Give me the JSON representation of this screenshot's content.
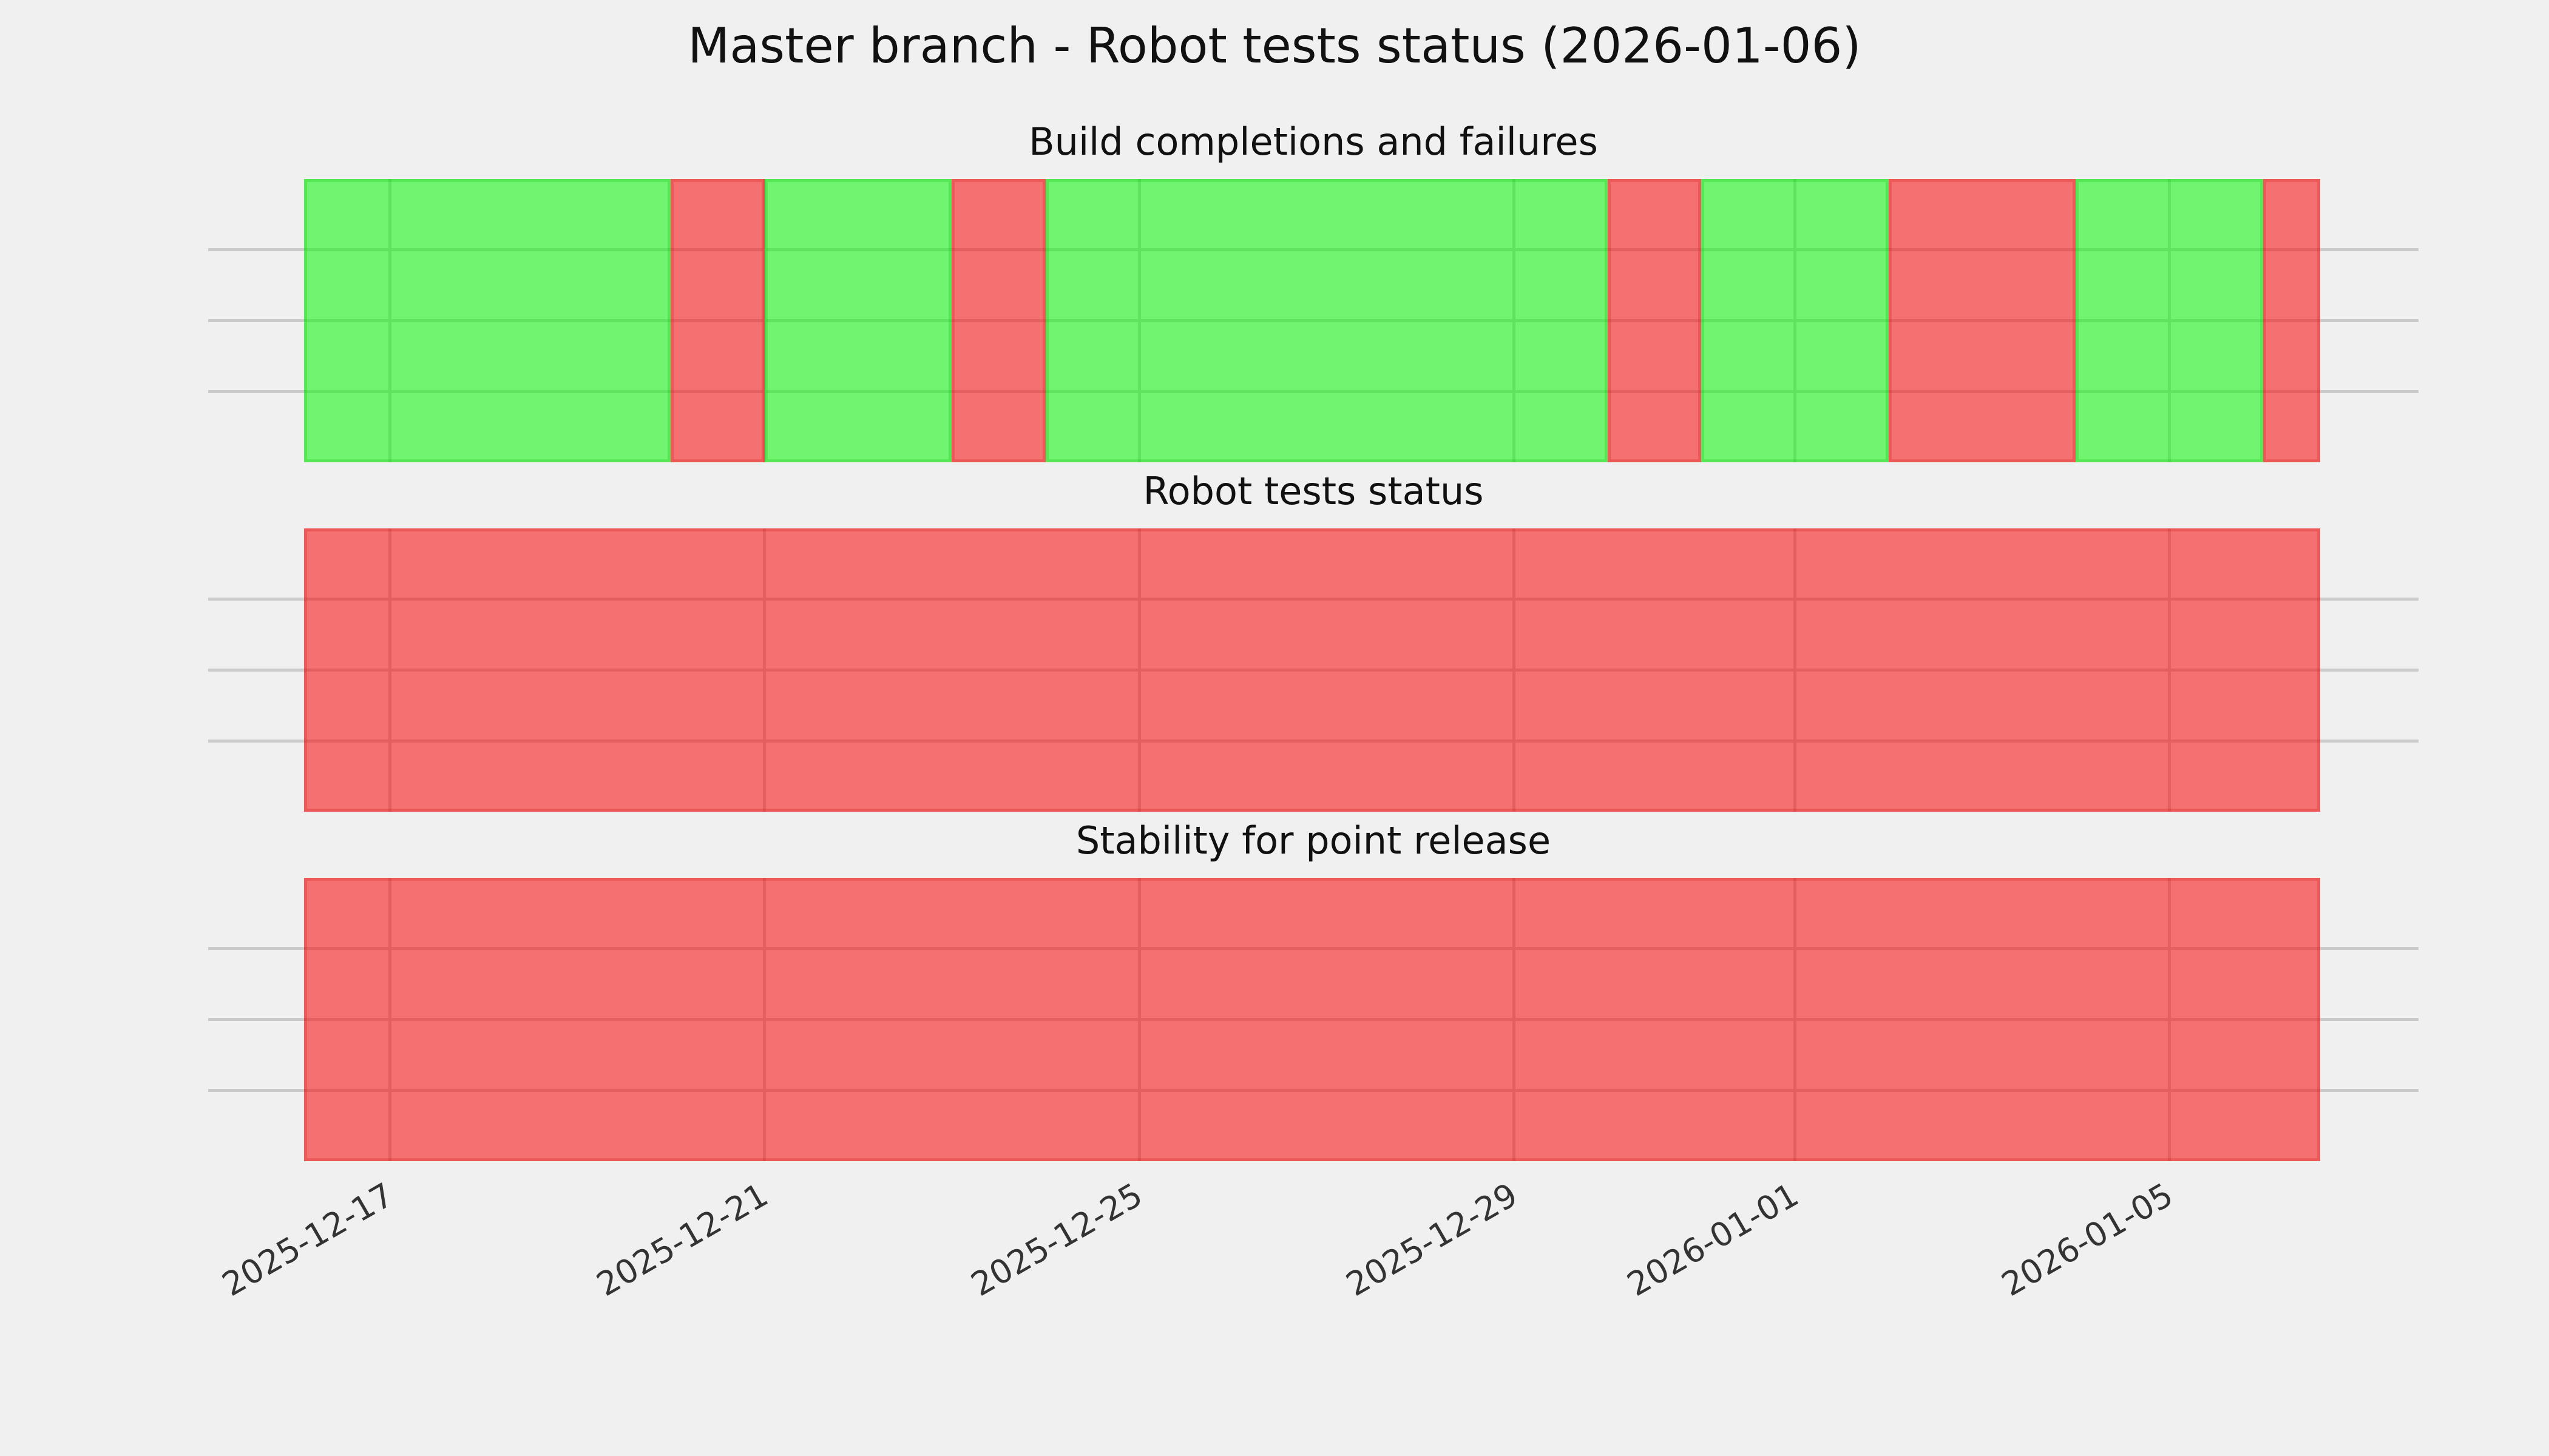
{
  "chart_data": {
    "type": "heatmap",
    "title": "Master branch - Robot tests status (2026-01-06)",
    "x_domain": [
      "2025-12-16T02:00:00",
      "2026-01-06T14:40:00"
    ],
    "x_ticks": [
      {
        "date": "2025-12-17T00:00:00",
        "label": "2025-12-17"
      },
      {
        "date": "2025-12-21T00:00:00",
        "label": "2025-12-21"
      },
      {
        "date": "2025-12-25T00:00:00",
        "label": "2025-12-25"
      },
      {
        "date": "2025-12-29T00:00:00",
        "label": "2025-12-29"
      },
      {
        "date": "2026-01-01T00:00:00",
        "label": "2026-01-01"
      },
      {
        "date": "2026-01-05T00:00:00",
        "label": "2026-01-05"
      }
    ],
    "rows_per_strip": 4,
    "grid": {
      "on": true,
      "color": "#cbcbcb"
    },
    "background_color": "#f0f0f0",
    "status_colors": {
      "pass": "rgba(10,250,10,0.55)",
      "fail": "rgba(250,10,10,0.55)"
    },
    "legend_position": "none",
    "strips": [
      {
        "title": "Build completions and failures",
        "segments": [
          {
            "start": "2025-12-16T02:00:00",
            "end": "2025-12-20T00:00:00",
            "status": "pass"
          },
          {
            "start": "2025-12-20T00:00:00",
            "end": "2025-12-21T00:00:00",
            "status": "fail"
          },
          {
            "start": "2025-12-21T00:00:00",
            "end": "2025-12-23T00:00:00",
            "status": "pass"
          },
          {
            "start": "2025-12-23T00:00:00",
            "end": "2025-12-24T00:00:00",
            "status": "fail"
          },
          {
            "start": "2025-12-24T00:00:00",
            "end": "2025-12-30T00:00:00",
            "status": "pass"
          },
          {
            "start": "2025-12-30T00:00:00",
            "end": "2025-12-31T00:00:00",
            "status": "fail"
          },
          {
            "start": "2025-12-31T00:00:00",
            "end": "2026-01-02T00:00:00",
            "status": "pass"
          },
          {
            "start": "2026-01-02T00:00:00",
            "end": "2026-01-04T00:00:00",
            "status": "fail"
          },
          {
            "start": "2026-01-04T00:00:00",
            "end": "2026-01-06T00:00:00",
            "status": "pass"
          },
          {
            "start": "2026-01-06T00:00:00",
            "end": "2026-01-06T14:40:00",
            "status": "fail"
          }
        ]
      },
      {
        "title": "Robot tests status",
        "segments": [
          {
            "start": "2025-12-16T02:00:00",
            "end": "2026-01-06T14:40:00",
            "status": "fail"
          }
        ]
      },
      {
        "title": "Stability for point release",
        "segments": [
          {
            "start": "2025-12-16T02:00:00",
            "end": "2026-01-06T14:40:00",
            "status": "fail"
          }
        ]
      }
    ]
  }
}
